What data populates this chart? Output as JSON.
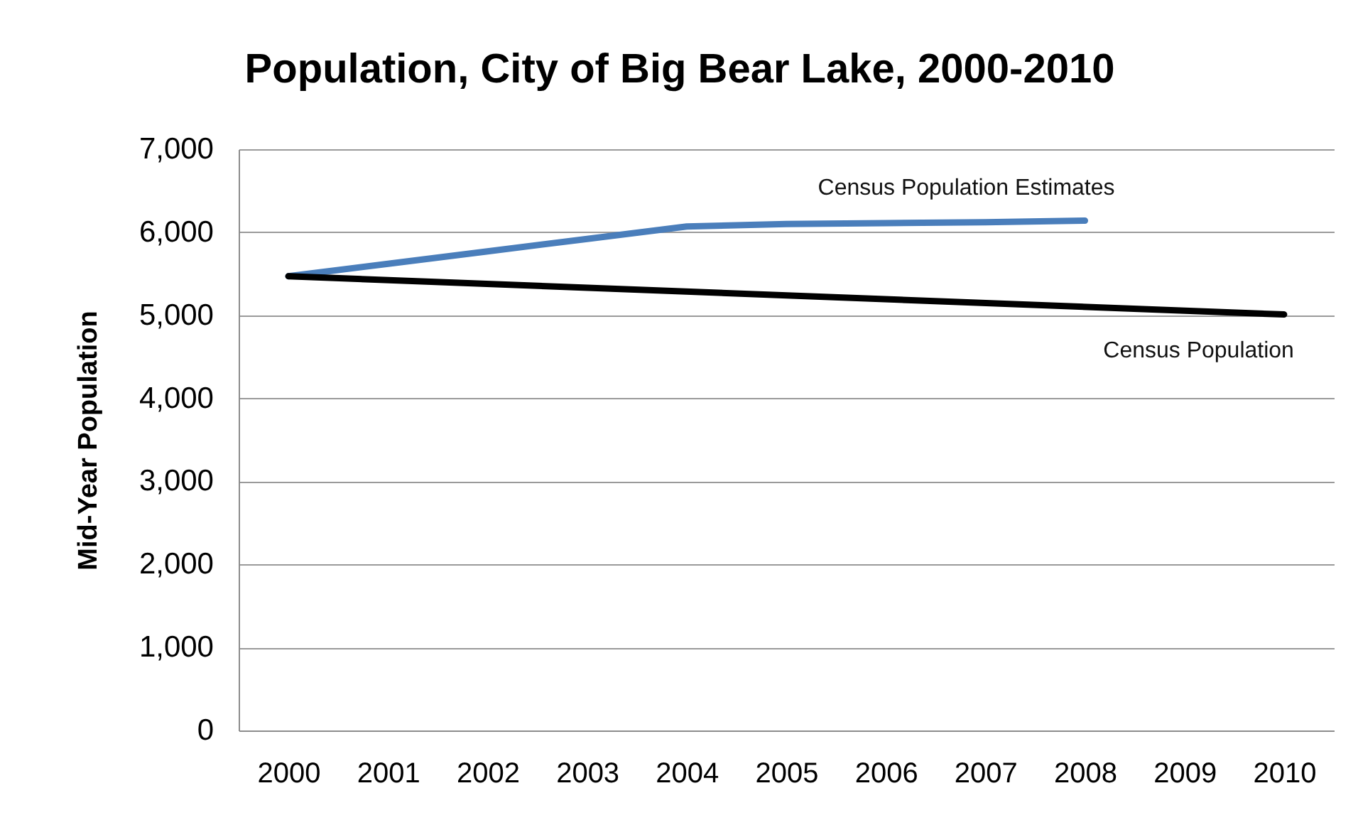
{
  "chart_data": {
    "type": "line",
    "title": "Population, City of Big Bear Lake, 2000-2010",
    "ylabel": "Mid-Year Population",
    "xlim": [
      1999.5,
      2010.5
    ],
    "xticks": [
      2000,
      2001,
      2002,
      2003,
      2004,
      2005,
      2006,
      2007,
      2008,
      2009,
      2010
    ],
    "ylim": [
      0,
      7000
    ],
    "yticks": [
      0,
      {
        "value": 1000,
        "label": "1,000"
      },
      {
        "value": 2000,
        "label": "2,000"
      },
      {
        "value": 3000,
        "label": "3,000"
      },
      {
        "value": 4000,
        "label": "4,000"
      },
      {
        "value": 5000,
        "label": "5,000"
      },
      {
        "value": 6000,
        "label": "6,000"
      },
      {
        "value": 7000,
        "label": "7,000"
      }
    ],
    "grid": "y",
    "legend": false,
    "marker": "none",
    "line_style": "solid",
    "series": [
      {
        "name": "Census Population Estimates",
        "color": "#4a7ebb",
        "x": [
          2000,
          2001,
          2002,
          2003,
          2004,
          2005,
          2006,
          2007,
          2008
        ],
        "values": [
          5470,
          5620,
          5770,
          5920,
          6070,
          6100,
          6110,
          6120,
          6140
        ]
      },
      {
        "name": "Census Population",
        "color": "#000000",
        "x": [
          2000,
          2010
        ],
        "values": [
          5470,
          5010
        ]
      }
    ]
  }
}
